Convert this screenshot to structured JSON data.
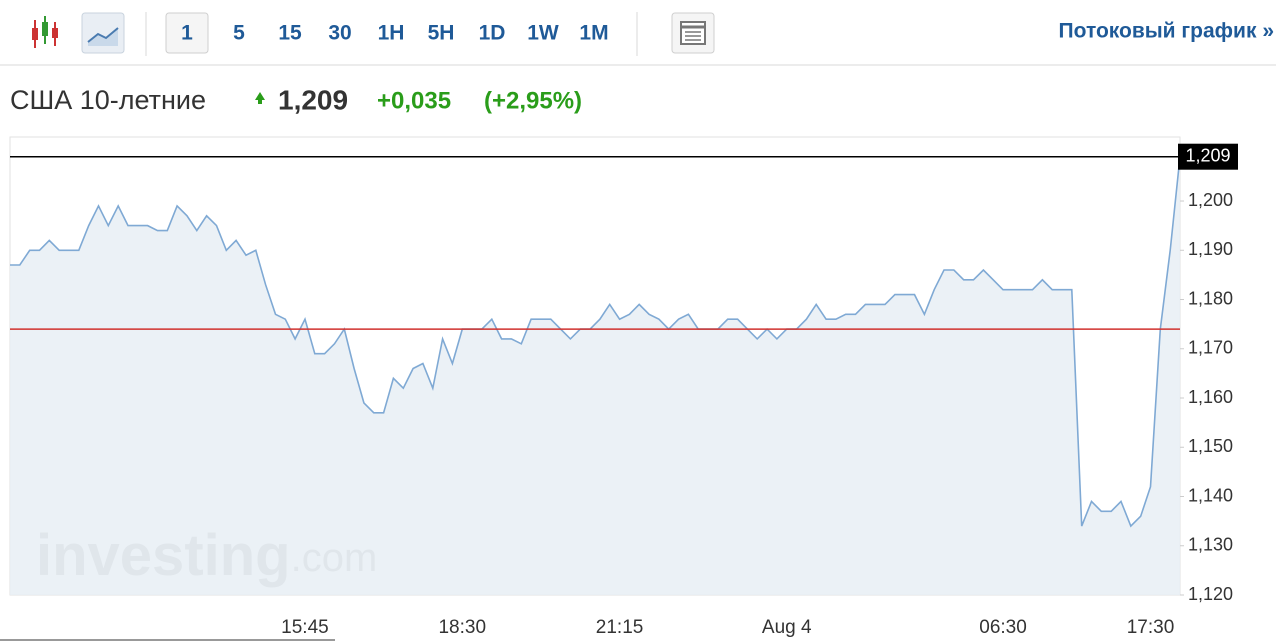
{
  "toolbar": {
    "intervals": [
      "1",
      "5",
      "15",
      "30",
      "1H",
      "5H",
      "1D",
      "1W",
      "1M"
    ],
    "selected": 0,
    "link": "Потоковый график »"
  },
  "quote": {
    "name": "США 10-летние",
    "price": "1,209",
    "change": "+0,035",
    "change_percent": "(+2,95%)"
  },
  "watermark": {
    "brand": "investing",
    "suffix": ".com"
  },
  "chart_data": {
    "type": "area",
    "categories": [
      null,
      null,
      null,
      null,
      null,
      null,
      null,
      null,
      null,
      null,
      null,
      null,
      null,
      null,
      null,
      null,
      null,
      null,
      null,
      null,
      null,
      null,
      null,
      null,
      null,
      null,
      null,
      null,
      null,
      null,
      "15:45",
      null,
      null,
      null,
      null,
      null,
      null,
      null,
      null,
      null,
      null,
      null,
      null,
      null,
      null,
      null,
      "18:30",
      null,
      null,
      null,
      null,
      null,
      null,
      null,
      null,
      null,
      null,
      null,
      null,
      null,
      null,
      null,
      "21:15",
      null,
      null,
      null,
      null,
      null,
      null,
      null,
      null,
      null,
      null,
      null,
      null,
      null,
      null,
      null,
      null,
      "Aug 4",
      null,
      null,
      null,
      null,
      null,
      null,
      null,
      null,
      null,
      null,
      null,
      null,
      null,
      null,
      null,
      null,
      null,
      null,
      null,
      null,
      null,
      "06:30",
      null,
      null,
      null,
      null,
      null,
      null,
      null,
      null,
      null,
      null,
      null,
      null,
      null,
      null,
      "17:30",
      null,
      null,
      null
    ],
    "series": [
      {
        "color": "#7fa9d4",
        "fill": "#e8eef5",
        "values": [
          1.187,
          1.187,
          1.19,
          1.19,
          1.192,
          1.19,
          1.19,
          1.19,
          1.195,
          1.199,
          1.195,
          1.199,
          1.195,
          1.195,
          1.195,
          1.194,
          1.194,
          1.199,
          1.197,
          1.194,
          1.197,
          1.195,
          1.19,
          1.192,
          1.189,
          1.19,
          1.183,
          1.177,
          1.176,
          1.172,
          1.176,
          1.169,
          1.169,
          1.171,
          1.174,
          1.166,
          1.159,
          1.157,
          1.157,
          1.164,
          1.162,
          1.166,
          1.167,
          1.162,
          1.172,
          1.167,
          1.174,
          1.174,
          1.174,
          1.176,
          1.172,
          1.172,
          1.171,
          1.176,
          1.176,
          1.176,
          1.174,
          1.172,
          1.174,
          1.174,
          1.176,
          1.179,
          1.176,
          1.177,
          1.179,
          1.177,
          1.176,
          1.174,
          1.176,
          1.177,
          1.174,
          1.174,
          1.174,
          1.176,
          1.176,
          1.174,
          1.172,
          1.174,
          1.172,
          1.174,
          1.174,
          1.176,
          1.179,
          1.176,
          1.176,
          1.177,
          1.177,
          1.179,
          1.179,
          1.179,
          1.181,
          1.181,
          1.181,
          1.177,
          1.182,
          1.186,
          1.186,
          1.184,
          1.184,
          1.186,
          1.184,
          1.182,
          1.182,
          1.182,
          1.182,
          1.184,
          1.182,
          1.182,
          1.182,
          1.134,
          1.139,
          1.137,
          1.137,
          1.139,
          1.134,
          1.136,
          1.142,
          1.174,
          1.19,
          1.209
        ]
      }
    ],
    "ylim": [
      1.12,
      1.213
    ],
    "yticks": [
      {
        "value": 1.12,
        "label": "1,120"
      },
      {
        "value": 1.13,
        "label": "1,130"
      },
      {
        "value": 1.14,
        "label": "1,140"
      },
      {
        "value": 1.15,
        "label": "1,150"
      },
      {
        "value": 1.16,
        "label": "1,160"
      },
      {
        "value": 1.17,
        "label": "1,170"
      },
      {
        "value": 1.18,
        "label": "1,180"
      },
      {
        "value": 1.19,
        "label": "1,190"
      },
      {
        "value": 1.2,
        "label": "1,200"
      }
    ],
    "reference_lines": [
      {
        "value": 1.209,
        "label": "1,209",
        "color": "#000000"
      },
      {
        "value": 1.174,
        "color": "#d0312d"
      }
    ]
  }
}
